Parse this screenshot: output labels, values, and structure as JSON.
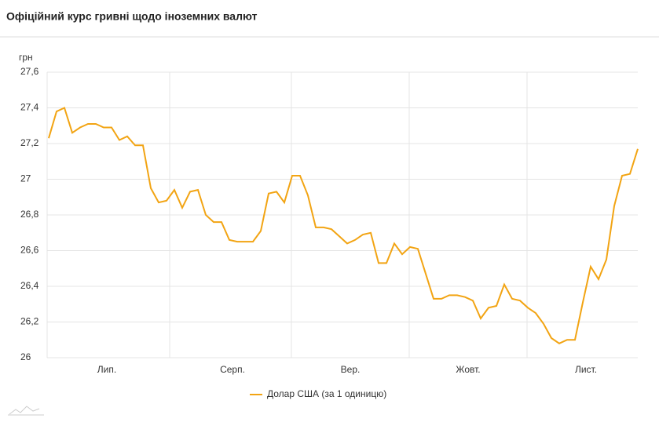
{
  "header": {
    "title": "Офіційний курс гривні щодо іноземних валют"
  },
  "chart_data": {
    "type": "line",
    "y_label": "грн",
    "categories": [
      null,
      null,
      null,
      null,
      null,
      null,
      null,
      "Лип.",
      null,
      null,
      null,
      null,
      null,
      null,
      null,
      null,
      null,
      null,
      null,
      null,
      null,
      null,
      null,
      "Серп.",
      null,
      null,
      null,
      null,
      null,
      null,
      null,
      null,
      null,
      null,
      null,
      null,
      null,
      null,
      "Вер.",
      null,
      null,
      null,
      null,
      null,
      null,
      null,
      null,
      null,
      null,
      null,
      null,
      null,
      null,
      "Жовт.",
      null,
      null,
      null,
      null,
      null,
      null,
      null,
      null,
      null,
      null,
      null,
      null,
      null,
      null,
      "Лист.",
      null,
      null,
      null,
      null,
      null,
      null,
      null
    ],
    "series": [
      {
        "name": "Долар США (за 1 одиницю)",
        "color": "#f2a413",
        "values": [
          27.23,
          27.38,
          27.4,
          27.26,
          27.29,
          27.31,
          27.31,
          27.29,
          27.29,
          27.22,
          27.24,
          27.19,
          27.19,
          26.95,
          26.87,
          26.88,
          26.94,
          26.84,
          26.93,
          26.94,
          26.8,
          26.76,
          26.76,
          26.66,
          26.65,
          26.65,
          26.65,
          26.71,
          26.92,
          26.93,
          26.87,
          27.02,
          27.02,
          26.91,
          26.73,
          26.73,
          26.72,
          26.68,
          26.64,
          26.66,
          26.69,
          26.7,
          26.53,
          26.53,
          26.64,
          26.58,
          26.62,
          26.61,
          26.47,
          26.33,
          26.33,
          26.35,
          26.35,
          26.34,
          26.32,
          26.22,
          26.28,
          26.29,
          26.41,
          26.33,
          26.32,
          26.28,
          26.25,
          26.19,
          26.11,
          26.08,
          26.1,
          26.1,
          26.31,
          26.51,
          26.44,
          26.55,
          26.85,
          27.02,
          27.03,
          27.17
        ]
      }
    ],
    "ylim": [
      26,
      27.6
    ],
    "yticks": [
      26,
      {
        "value": 26.2,
        "label": "26,2"
      },
      {
        "value": 26.4,
        "label": "26,4"
      },
      {
        "value": 26.6,
        "label": "26,6"
      },
      {
        "value": 26.8,
        "label": "26,8"
      },
      27,
      {
        "value": 27.2,
        "label": "27,2"
      },
      {
        "value": 27.4,
        "label": "27,4"
      },
      {
        "value": 27.6,
        "label": "27,6"
      }
    ],
    "grid": true,
    "legend": "bottom"
  }
}
